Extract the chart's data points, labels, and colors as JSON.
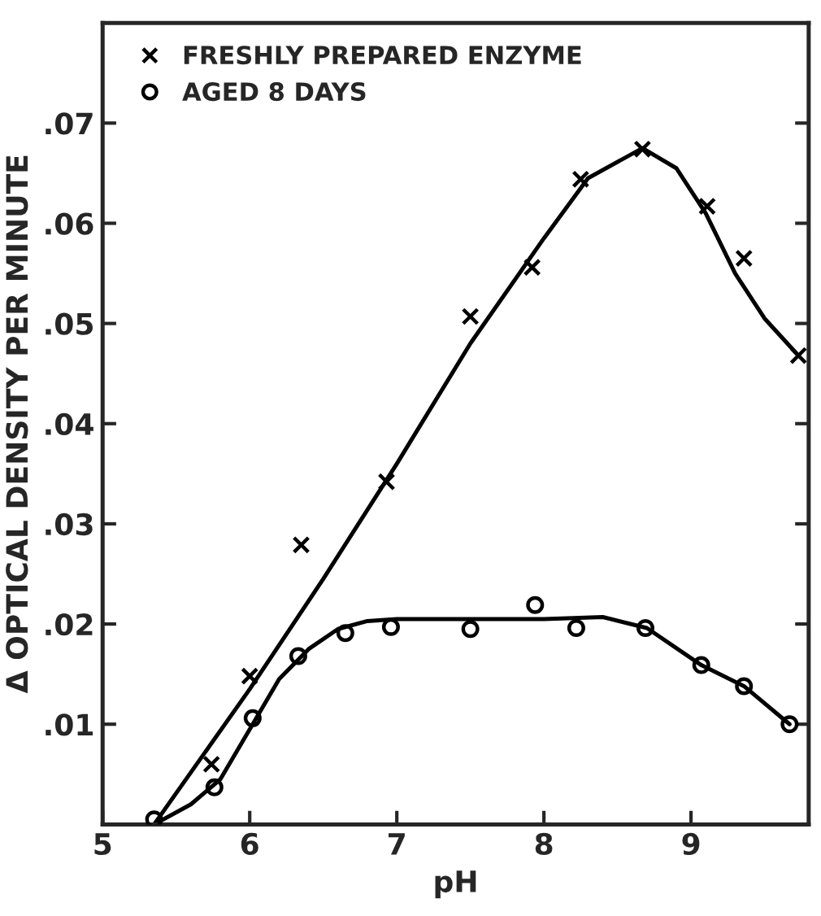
{
  "chart_data": {
    "type": "scatter",
    "xlabel": "pH",
    "ylabel": "Δ OPTICAL DENSITY PER MINUTE",
    "xlim": [
      5,
      9.8
    ],
    "ylim": [
      0,
      0.08
    ],
    "xticks": [
      5,
      6,
      7,
      8,
      9
    ],
    "yticks": [
      {
        "value": 0.01,
        "label": ".01"
      },
      {
        "value": 0.02,
        "label": ".02"
      },
      {
        "value": 0.03,
        "label": ".03"
      },
      {
        "value": 0.04,
        "label": ".04"
      },
      {
        "value": 0.05,
        "label": ".05"
      },
      {
        "value": 0.06,
        "label": ".06"
      },
      {
        "value": 0.07,
        "label": ".07"
      }
    ],
    "grid": false,
    "legend": "top left",
    "series": [
      {
        "name": "FRESHLY PREPARED ENZYME",
        "marker": "cross",
        "color": "#000000",
        "x": [
          5.74,
          6.0,
          6.35,
          6.93,
          7.5,
          7.92,
          8.25,
          8.67,
          9.11,
          9.36,
          9.73
        ],
        "values": [
          0.006,
          0.0148,
          0.0279,
          0.0342,
          0.0507,
          0.0556,
          0.0644,
          0.0674,
          0.0617,
          0.0565,
          0.0468
        ]
      },
      {
        "name": "AGED 8 DAYS",
        "marker": "circle",
        "color": "#000000",
        "x": [
          5.35,
          5.76,
          6.02,
          6.33,
          6.65,
          6.96,
          7.5,
          7.94,
          8.22,
          8.69,
          9.07,
          9.36,
          9.67
        ],
        "values": [
          0.0005,
          0.0037,
          0.0106,
          0.0168,
          0.0191,
          0.0197,
          0.0195,
          0.0219,
          0.0196,
          0.0196,
          0.0159,
          0.0138,
          0.01
        ]
      },
      {
        "type": "line",
        "marker": "none",
        "line_style": "solid",
        "color": "#000000",
        "x": [
          5.35,
          6.0,
          6.5,
          7.0,
          7.5,
          8.0,
          8.3,
          8.67,
          8.9,
          9.1,
          9.3,
          9.5,
          9.73
        ],
        "values": [
          0,
          0.0135,
          0.0245,
          0.036,
          0.048,
          0.0585,
          0.0645,
          0.0675,
          0.0655,
          0.061,
          0.055,
          0.0505,
          0.0468
        ]
      },
      {
        "type": "line",
        "marker": "none",
        "line_style": "solid",
        "color": "#000000",
        "x": [
          5.35,
          5.6,
          5.8,
          6.0,
          6.2,
          6.4,
          6.6,
          6.8,
          7.0,
          7.5,
          8.0,
          8.4,
          8.7,
          9.07,
          9.36,
          9.67
        ],
        "values": [
          0,
          0.002,
          0.0045,
          0.0095,
          0.0145,
          0.0175,
          0.0195,
          0.0203,
          0.0205,
          0.0205,
          0.0205,
          0.0207,
          0.0196,
          0.0159,
          0.0138,
          0.01
        ]
      }
    ]
  }
}
